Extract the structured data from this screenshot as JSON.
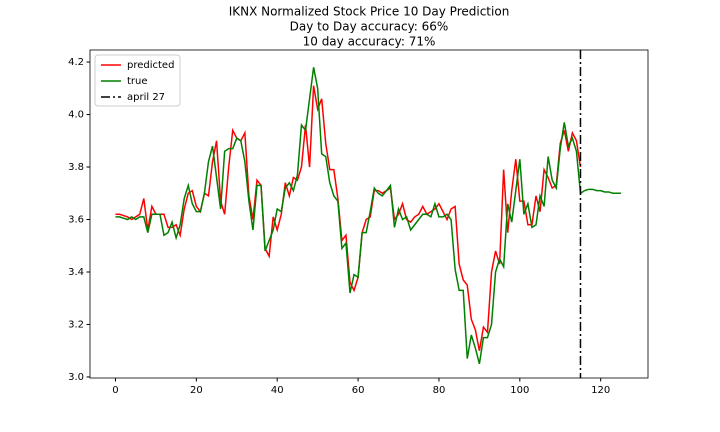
{
  "chart_data": {
    "type": "line",
    "title": [
      "IKNX Normalized Stock Price 10 Day Prediction",
      "Day to Day accuracy: 66%",
      "10 day accuracy: 71%"
    ],
    "x": [
      0,
      1,
      2,
      3,
      4,
      5,
      6,
      7,
      8,
      9,
      10,
      11,
      12,
      13,
      14,
      15,
      16,
      17,
      18,
      19,
      20,
      21,
      22,
      23,
      24,
      25,
      26,
      27,
      28,
      29,
      30,
      31,
      32,
      33,
      34,
      35,
      36,
      37,
      38,
      39,
      40,
      41,
      42,
      43,
      44,
      45,
      46,
      47,
      48,
      49,
      50,
      51,
      52,
      53,
      54,
      55,
      56,
      57,
      58,
      59,
      60,
      61,
      62,
      63,
      64,
      65,
      66,
      67,
      68,
      69,
      70,
      71,
      72,
      73,
      74,
      75,
      76,
      77,
      78,
      79,
      80,
      81,
      82,
      83,
      84,
      85,
      86,
      87,
      88,
      89,
      90,
      91,
      92,
      93,
      94,
      95,
      96,
      97,
      98,
      99,
      100,
      101,
      102,
      103,
      104,
      105,
      106,
      107,
      108,
      109,
      110,
      111,
      112,
      113,
      114,
      115,
      116,
      117,
      118,
      119,
      120,
      121,
      122,
      123,
      124,
      125
    ],
    "series": [
      {
        "name": "predicted",
        "color": "#ff0000",
        "values": [
          3.62,
          3.62,
          3.615,
          3.61,
          3.6,
          3.61,
          3.62,
          3.68,
          3.56,
          3.65,
          3.62,
          3.62,
          3.62,
          3.57,
          3.57,
          3.58,
          3.54,
          3.64,
          3.7,
          3.71,
          3.65,
          3.63,
          3.7,
          3.69,
          3.82,
          3.9,
          3.67,
          3.62,
          3.8,
          3.94,
          3.91,
          3.9,
          3.93,
          3.69,
          3.6,
          3.75,
          3.73,
          3.49,
          3.46,
          3.61,
          3.56,
          3.62,
          3.74,
          3.69,
          3.76,
          3.75,
          3.8,
          3.96,
          3.8,
          4.11,
          4.02,
          4.06,
          3.89,
          3.79,
          3.79,
          3.68,
          3.52,
          3.54,
          3.36,
          3.33,
          3.38,
          3.55,
          3.6,
          3.61,
          3.71,
          3.71,
          3.7,
          3.71,
          3.72,
          3.6,
          3.62,
          3.66,
          3.6,
          3.59,
          3.61,
          3.62,
          3.65,
          3.62,
          3.63,
          3.64,
          3.66,
          3.63,
          3.6,
          3.64,
          3.65,
          3.43,
          3.37,
          3.35,
          3.22,
          3.18,
          3.1,
          3.19,
          3.17,
          3.4,
          3.48,
          3.43,
          3.79,
          3.55,
          3.71,
          3.83,
          3.67,
          3.67,
          3.58,
          3.58,
          3.69,
          3.63,
          3.79,
          3.76,
          3.72,
          3.73,
          3.89,
          3.94,
          3.86,
          3.93,
          3.9,
          3.8,
          null,
          null,
          null,
          null,
          null,
          null,
          null,
          null,
          null,
          null
        ]
      },
      {
        "name": "true",
        "color": "#008000",
        "values": [
          3.61,
          3.61,
          3.605,
          3.6,
          3.61,
          3.6,
          3.61,
          3.61,
          3.55,
          3.62,
          3.62,
          3.62,
          3.54,
          3.55,
          3.59,
          3.53,
          3.58,
          3.68,
          3.73,
          3.66,
          3.63,
          3.63,
          3.7,
          3.82,
          3.88,
          3.76,
          3.64,
          3.86,
          3.87,
          3.87,
          3.91,
          3.9,
          3.82,
          3.67,
          3.56,
          3.73,
          3.73,
          3.48,
          3.52,
          3.56,
          3.64,
          3.63,
          3.72,
          3.74,
          3.71,
          3.77,
          3.96,
          3.94,
          4.06,
          4.18,
          4.1,
          3.85,
          3.84,
          3.74,
          3.69,
          3.67,
          3.49,
          3.51,
          3.32,
          3.39,
          3.38,
          3.55,
          3.55,
          3.63,
          3.72,
          3.7,
          3.69,
          3.71,
          3.73,
          3.57,
          3.64,
          3.6,
          3.61,
          3.56,
          3.58,
          3.6,
          3.62,
          3.62,
          3.61,
          3.66,
          3.61,
          3.61,
          3.62,
          3.6,
          3.41,
          3.33,
          3.33,
          3.07,
          3.16,
          3.11,
          3.05,
          3.15,
          3.15,
          3.2,
          3.4,
          3.45,
          3.42,
          3.66,
          3.59,
          3.71,
          3.83,
          3.62,
          3.66,
          3.57,
          3.58,
          3.69,
          3.65,
          3.84,
          3.75,
          3.72,
          3.87,
          3.97,
          3.88,
          3.91,
          3.86,
          3.7,
          3.71,
          3.715,
          3.715,
          3.71,
          3.71,
          3.705,
          3.705,
          3.7,
          3.7,
          3.7
        ]
      }
    ],
    "vline": {
      "x": 115,
      "name": "april 27",
      "color": "#000000"
    },
    "xlim": [
      -6.3,
      131.7
    ],
    "xticks": [
      0,
      20,
      40,
      60,
      80,
      100,
      120
    ],
    "ylim": [
      2.996,
      4.246
    ],
    "yticks": [
      {
        "value": 3,
        "label": "3.0"
      },
      3.2,
      3.4,
      3.6,
      3.8,
      {
        "value": 4,
        "label": "4.0"
      },
      4.2
    ],
    "legend": "upper left"
  }
}
